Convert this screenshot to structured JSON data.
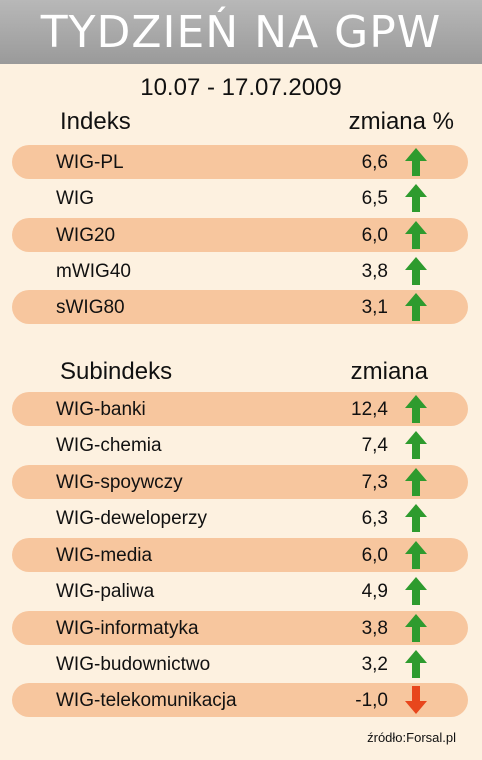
{
  "title": "TYDZIEŃ NA GPW",
  "date_range": "10.07 - 17.07.2009",
  "indices": {
    "header_name": "Indeks",
    "header_change": "zmiana %",
    "rows": [
      {
        "name": "WIG-PL",
        "value": "6,6",
        "direction": "up"
      },
      {
        "name": "WIG",
        "value": "6,5",
        "direction": "up"
      },
      {
        "name": "WIG20",
        "value": "6,0",
        "direction": "up"
      },
      {
        "name": "mWIG40",
        "value": "3,8",
        "direction": "up"
      },
      {
        "name": "sWIG80",
        "value": "3,1",
        "direction": "up"
      }
    ]
  },
  "subindices": {
    "header_name": "Subindeks",
    "header_change": "zmiana",
    "rows": [
      {
        "name": "WIG-banki",
        "value": "12,4",
        "direction": "up"
      },
      {
        "name": "WIG-chemia",
        "value": "7,4",
        "direction": "up"
      },
      {
        "name": "WIG-spoywczy",
        "value": "7,3",
        "direction": "up"
      },
      {
        "name": "WIG-deweloperzy",
        "value": "6,3",
        "direction": "up"
      },
      {
        "name": "WIG-media",
        "value": "6,0",
        "direction": "up"
      },
      {
        "name": "WIG-paliwa",
        "value": "4,9",
        "direction": "up"
      },
      {
        "name": "WIG-informatyka",
        "value": "3,8",
        "direction": "up"
      },
      {
        "name": "WIG-budownictwo",
        "value": "3,2",
        "direction": "up"
      },
      {
        "name": "WIG-telekomunikacja",
        "value": "-1,0",
        "direction": "down"
      }
    ]
  },
  "colors": {
    "up_arrow": "#2e9b2e",
    "down_arrow": "#e8461c",
    "row_shade": "#f7c69e"
  },
  "source": "źródło:Forsal.pl"
}
